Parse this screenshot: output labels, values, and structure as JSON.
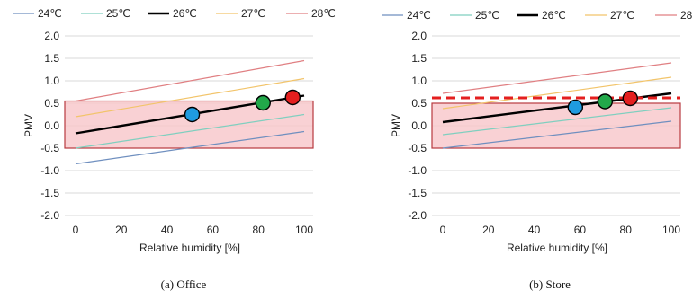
{
  "legend_entries": [
    {
      "label": "24℃",
      "color": "#6f8fbf"
    },
    {
      "label": "25℃",
      "color": "#7fcfbf"
    },
    {
      "label": "26℃",
      "color": "#000000"
    },
    {
      "label": "27℃",
      "color": "#f2c46a"
    },
    {
      "label": "28℃",
      "color": "#e07f82"
    }
  ],
  "band_colors": {
    "fill": "#f7c6c9",
    "stroke": "#b83a3f"
  },
  "chart_data": [
    {
      "type": "line",
      "caption": "(a)   Office",
      "xlabel": "Relative humidity [%]",
      "ylabel": "PMV",
      "xlim": [
        0,
        100
      ],
      "ylim": [
        -2.0,
        2.0
      ],
      "xticks": [
        "0",
        "20",
        "40",
        "60",
        "80",
        "100"
      ],
      "yticks": [
        "-2.0",
        "-1.5",
        "-1.0",
        "-0.5",
        "0.0",
        "0.5",
        "1.0",
        "1.5",
        "2.0"
      ],
      "grid": "horizontal",
      "legend": "top",
      "comfort_band": [
        -0.5,
        0.55
      ],
      "series": [
        {
          "name": "24℃",
          "x": [
            0,
            100
          ],
          "y": [
            -0.85,
            -0.13
          ]
        },
        {
          "name": "25℃",
          "x": [
            0,
            100
          ],
          "y": [
            -0.5,
            0.25
          ]
        },
        {
          "name": "26℃",
          "x": [
            0,
            100
          ],
          "y": [
            -0.17,
            0.67
          ]
        },
        {
          "name": "27℃",
          "x": [
            0,
            100
          ],
          "y": [
            0.2,
            1.05
          ]
        },
        {
          "name": "28℃",
          "x": [
            0,
            100
          ],
          "y": [
            0.55,
            1.45
          ]
        }
      ],
      "markers": [
        {
          "x": 51,
          "y": 0.25,
          "color": "#1f9be0"
        },
        {
          "x": 82,
          "y": 0.51,
          "color": "#22a84a"
        },
        {
          "x": 95,
          "y": 0.63,
          "color": "#e41f1f"
        }
      ]
    },
    {
      "type": "line",
      "caption": "(b) Store",
      "xlabel": "Relative humidity [%]",
      "ylabel": "PMV",
      "xlim": [
        0,
        100
      ],
      "ylim": [
        -2.0,
        2.0
      ],
      "xticks": [
        "0",
        "20",
        "40",
        "60",
        "80",
        "100"
      ],
      "yticks": [
        "-2.0",
        "-1.5",
        "-1.0",
        "-0.5",
        "0.0",
        "0.5",
        "1.0",
        "1.5",
        "2.0"
      ],
      "grid": "horizontal",
      "legend": "top",
      "comfort_band": [
        -0.5,
        0.5
      ],
      "reference_line": {
        "y": 0.62,
        "color": "#e41f1f"
      },
      "series": [
        {
          "name": "24℃",
          "x": [
            0,
            100
          ],
          "y": [
            -0.5,
            0.1
          ]
        },
        {
          "name": "25℃",
          "x": [
            0,
            100
          ],
          "y": [
            -0.2,
            0.4
          ]
        },
        {
          "name": "26℃",
          "x": [
            0,
            100
          ],
          "y": [
            0.08,
            0.72
          ]
        },
        {
          "name": "27℃",
          "x": [
            0,
            100
          ],
          "y": [
            0.38,
            1.08
          ]
        },
        {
          "name": "28℃",
          "x": [
            0,
            100
          ],
          "y": [
            0.72,
            1.4
          ]
        }
      ],
      "markers": [
        {
          "x": 58,
          "y": 0.41,
          "color": "#1f9be0"
        },
        {
          "x": 71,
          "y": 0.54,
          "color": "#22a84a"
        },
        {
          "x": 82,
          "y": 0.61,
          "color": "#e41f1f"
        }
      ]
    }
  ]
}
